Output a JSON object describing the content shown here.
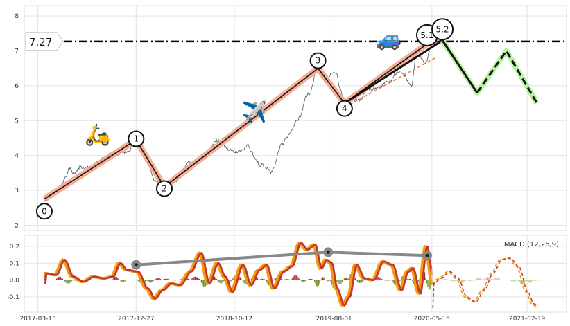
{
  "chart_data": [
    {
      "type": "line",
      "panel": "price",
      "ylim": [
        1.85,
        8.3
      ],
      "yticks": [
        2,
        3,
        4,
        5,
        6,
        7,
        8
      ],
      "xlim": [
        "2017-02-01",
        "2021-06-15"
      ],
      "xticks": [
        "2017-03-13",
        "2017-12-27",
        "2018-10-12",
        "2019-08-01",
        "2020-05-15",
        "2021-02-19"
      ],
      "grid": true,
      "price_level": {
        "value": 7.27,
        "label": "7.27"
      },
      "price_anchors": [
        [
          "2017-04-01",
          2.75
        ],
        [
          "2017-05-10",
          3.05
        ],
        [
          "2017-06-15",
          3.6
        ],
        [
          "2017-07-20",
          3.7
        ],
        [
          "2017-09-01",
          3.8
        ],
        [
          "2017-10-15",
          4.0
        ],
        [
          "2017-11-20",
          4.1
        ],
        [
          "2017-12-27",
          4.4
        ],
        [
          "2018-01-20",
          4.0
        ],
        [
          "2018-02-20",
          3.35
        ],
        [
          "2018-03-20",
          3.1
        ],
        [
          "2018-04-20",
          3.3
        ],
        [
          "2018-06-01",
          3.7
        ],
        [
          "2018-07-15",
          4.0
        ],
        [
          "2018-08-20",
          4.4
        ],
        [
          "2018-10-01",
          4.1
        ],
        [
          "2018-11-15",
          4.2
        ],
        [
          "2019-01-01",
          3.7
        ],
        [
          "2019-02-01",
          3.5
        ],
        [
          "2019-03-01",
          4.3
        ],
        [
          "2019-04-15",
          5.0
        ],
        [
          "2019-05-20",
          5.8
        ],
        [
          "2019-06-15",
          6.5
        ],
        [
          "2019-07-10",
          6.1
        ],
        [
          "2019-08-01",
          6.4
        ],
        [
          "2019-09-01",
          5.5
        ],
        [
          "2019-10-01",
          5.6
        ],
        [
          "2019-11-15",
          5.9
        ],
        [
          "2020-01-01",
          6.1
        ],
        [
          "2020-02-15",
          6.3
        ],
        [
          "2020-03-15",
          6.0
        ],
        [
          "2020-04-01",
          7.0
        ],
        [
          "2020-04-25",
          6.6
        ],
        [
          "2020-05-10",
          7.1
        ]
      ],
      "waves": [
        {
          "label": "0",
          "date": "2017-04-01",
          "price": 2.75,
          "label_price": 2.4
        },
        {
          "label": "1",
          "date": "2017-12-27",
          "price": 4.45,
          "label_price": 4.48
        },
        {
          "label": "2",
          "date": "2018-03-20",
          "price": 3.1,
          "label_price": 3.05
        },
        {
          "label": "3",
          "date": "2019-06-15",
          "price": 6.5,
          "label_price": 6.72
        },
        {
          "label": "4",
          "date": "2019-09-01",
          "price": 5.5,
          "label_price": 5.35
        },
        {
          "label": "5.1",
          "date": "2020-05-01",
          "price": 7.2,
          "label_price": 7.45
        },
        {
          "label": "5.2",
          "date": "2020-06-15",
          "price": 7.3,
          "label_price": 7.62
        }
      ],
      "projection": [
        [
          "2020-06-15",
          7.3
        ],
        [
          "2020-09-25",
          5.8
        ],
        [
          "2020-12-20",
          7.0
        ],
        [
          "2021-03-20",
          5.5
        ]
      ],
      "emojis": [
        {
          "name": "scooter",
          "glyph": "🛵",
          "date": "2017-09-05",
          "price": 4.4
        },
        {
          "name": "airplane",
          "glyph": "✈️",
          "date": "2018-12-10",
          "price": 5.05
        },
        {
          "name": "car",
          "glyph": "🚙",
          "date": "2020-01-10",
          "price": 7.15
        }
      ]
    },
    {
      "type": "line",
      "panel": "macd",
      "title": "MACD (12,26,9)",
      "ylim": [
        -0.19,
        0.265
      ],
      "yticks": [
        -0.1,
        0.0,
        0.1,
        0.2
      ],
      "macd_anchors": [
        [
          "2017-04-01",
          0.04
        ],
        [
          "2017-05-01",
          0.03
        ],
        [
          "2017-05-25",
          0.12
        ],
        [
          "2017-06-20",
          0.02
        ],
        [
          "2017-07-20",
          -0.01
        ],
        [
          "2017-08-20",
          0.02
        ],
        [
          "2017-09-20",
          0.01
        ],
        [
          "2017-10-15",
          0.02
        ],
        [
          "2017-11-05",
          0.1
        ],
        [
          "2017-11-25",
          0.06
        ],
        [
          "2017-12-27",
          0.05
        ],
        [
          "2018-01-25",
          -0.05
        ],
        [
          "2018-02-15",
          -0.11
        ],
        [
          "2018-03-10",
          -0.06
        ],
        [
          "2018-04-05",
          -0.02
        ],
        [
          "2018-05-01",
          -0.03
        ],
        [
          "2018-06-01",
          0.05
        ],
        [
          "2018-07-01",
          0.16
        ],
        [
          "2018-07-25",
          -0.02
        ],
        [
          "2018-08-20",
          0.1
        ],
        [
          "2018-09-10",
          0.02
        ],
        [
          "2018-10-01",
          -0.07
        ],
        [
          "2018-11-01",
          0.09
        ],
        [
          "2018-11-25",
          -0.03
        ],
        [
          "2018-12-20",
          0.06
        ],
        [
          "2019-01-10",
          0.09
        ],
        [
          "2019-02-01",
          -0.05
        ],
        [
          "2019-03-01",
          0.05
        ],
        [
          "2019-03-25",
          0.08
        ],
        [
          "2019-04-20",
          0.22
        ],
        [
          "2019-05-10",
          0.18
        ],
        [
          "2019-06-01",
          0.21
        ],
        [
          "2019-06-20",
          0.07
        ],
        [
          "2019-07-05",
          0.12
        ],
        [
          "2019-07-20",
          0.1
        ],
        [
          "2019-08-05",
          -0.05
        ],
        [
          "2019-08-25",
          -0.15
        ],
        [
          "2019-09-10",
          -0.1
        ],
        [
          "2019-10-01",
          0.09
        ],
        [
          "2019-10-25",
          0.01
        ],
        [
          "2019-11-20",
          0.0
        ],
        [
          "2019-12-20",
          0.11
        ],
        [
          "2020-01-15",
          0.09
        ],
        [
          "2020-02-10",
          -0.06
        ],
        [
          "2020-03-01",
          0.05
        ],
        [
          "2020-03-15",
          0.07
        ],
        [
          "2020-04-05",
          -0.08
        ],
        [
          "2020-04-25",
          0.2
        ],
        [
          "2020-05-15",
          -0.02
        ]
      ],
      "projected_macd": [
        [
          "2020-05-15",
          -0.02
        ],
        [
          "2020-06-05",
          0.01
        ],
        [
          "2020-07-01",
          0.05
        ],
        [
          "2020-07-25",
          0.01
        ],
        [
          "2020-08-20",
          -0.1
        ],
        [
          "2020-09-15",
          -0.13
        ],
        [
          "2020-10-10",
          -0.06
        ],
        [
          "2020-11-05",
          0.04
        ],
        [
          "2020-12-01",
          0.12
        ],
        [
          "2020-12-25",
          0.13
        ],
        [
          "2021-01-20",
          0.08
        ],
        [
          "2021-02-15",
          -0.07
        ],
        [
          "2021-03-05",
          -0.14
        ],
        [
          "2021-03-20",
          -0.16
        ]
      ],
      "divergence": [
        {
          "date": "2017-12-27",
          "value": 0.09
        },
        {
          "date": "2019-07-15",
          "value": 0.165
        },
        {
          "date": "2020-05-01",
          "value": 0.145
        }
      ],
      "hist_end": "2021-03-20"
    }
  ]
}
